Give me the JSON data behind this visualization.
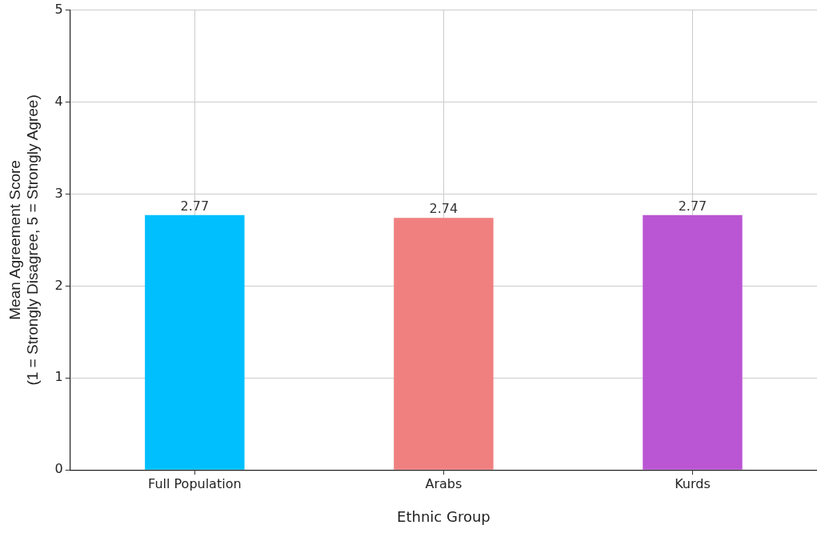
{
  "chart_data": {
    "type": "bar",
    "xlabel": "Ethnic Group",
    "ylabel": "Mean Agreement Score\n(1 = Strongly Disagree, 5 = Strongly Agree)",
    "categories": [
      "Full Population",
      "Arabs",
      "Kurds"
    ],
    "values": [
      2.77,
      2.74,
      2.77
    ],
    "colors": [
      "#00bfff",
      "#f08080",
      "#ba55d3"
    ],
    "ylim": [
      0,
      5
    ],
    "yticks": [
      0,
      1,
      2,
      3,
      4,
      5
    ],
    "grid": true,
    "data_labels": true
  }
}
